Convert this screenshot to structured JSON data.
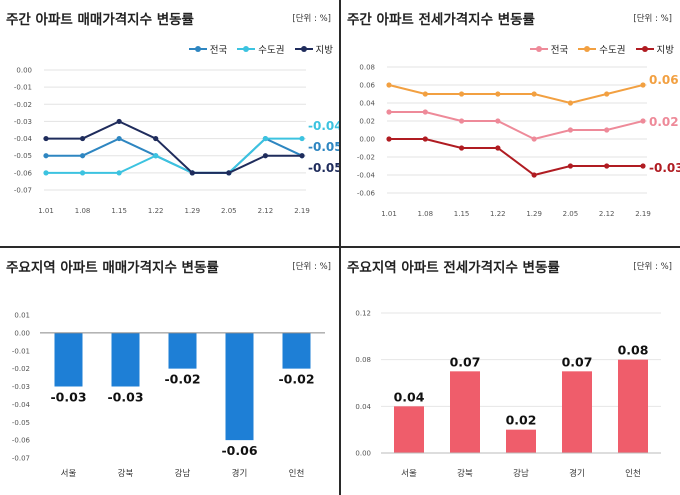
{
  "chart_data": [
    {
      "type": "line",
      "title": "주간 아파트 매매가격지수 변동률",
      "unit": "[단위 : %]",
      "categories": [
        "1.01",
        "1.08",
        "1.15",
        "1.22",
        "1.29",
        "2.05",
        "2.12",
        "2.19"
      ],
      "ylim": [
        -0.07,
        0.0
      ],
      "yticks": [
        "0.00",
        "-0.01",
        "-0.02",
        "-0.03",
        "-0.04",
        "-0.05",
        "-0.06",
        "-0.07"
      ],
      "grid": true,
      "legend": "top-right",
      "series": [
        {
          "name": "전국",
          "color": "#2E86C1",
          "values": [
            -0.05,
            -0.05,
            -0.04,
            -0.05,
            -0.06,
            -0.06,
            -0.04,
            -0.05
          ]
        },
        {
          "name": "수도권",
          "color": "#3CC3E0",
          "values": [
            -0.06,
            -0.06,
            -0.06,
            -0.05,
            -0.06,
            -0.06,
            -0.04,
            -0.04
          ]
        },
        {
          "name": "지방",
          "color": "#1F2C5C",
          "values": [
            -0.04,
            -0.04,
            -0.03,
            -0.04,
            -0.06,
            -0.06,
            -0.05,
            -0.05
          ]
        }
      ],
      "end_labels": [
        {
          "text": "-0.04",
          "color": "#3CC3E0"
        },
        {
          "text": "-0.05",
          "color": "#2E86C1"
        },
        {
          "text": "-0.05",
          "color": "#1F2C5C"
        }
      ]
    },
    {
      "type": "line",
      "title": "주간 아파트 전세가격지수 변동률",
      "unit": "[단위 : %]",
      "categories": [
        "1.01",
        "1.08",
        "1.15",
        "1.22",
        "1.29",
        "2.05",
        "2.12",
        "2.19"
      ],
      "ylim": [
        -0.06,
        0.08
      ],
      "yticks": [
        "0.08",
        "0.06",
        "0.04",
        "0.02",
        "0.00",
        "-0.02",
        "-0.04",
        "-0.06"
      ],
      "grid": true,
      "legend": "top-right",
      "series": [
        {
          "name": "전국",
          "color": "#EE8A99",
          "values": [
            0.03,
            0.03,
            0.02,
            0.02,
            0.0,
            0.01,
            0.01,
            0.02
          ]
        },
        {
          "name": "수도권",
          "color": "#F2A041",
          "values": [
            0.06,
            0.05,
            0.05,
            0.05,
            0.05,
            0.04,
            0.05,
            0.06
          ]
        },
        {
          "name": "지방",
          "color": "#B01C22",
          "values": [
            0.0,
            0.0,
            -0.01,
            -0.01,
            -0.04,
            -0.03,
            -0.03,
            -0.03
          ]
        }
      ],
      "end_labels": [
        {
          "text": "0.06",
          "color": "#F2A041"
        },
        {
          "text": "0.02",
          "color": "#EE8A99"
        },
        {
          "text": "-0.03",
          "color": "#B01C22"
        }
      ]
    },
    {
      "type": "bar",
      "title": "주요지역 아파트 매매가격지수 변동률",
      "unit": "[단위 : %]",
      "categories": [
        "서울",
        "강북",
        "강남",
        "경기",
        "인천"
      ],
      "values": [
        -0.03,
        -0.03,
        -0.02,
        -0.06,
        -0.02
      ],
      "value_labels": [
        "-0.03",
        "-0.03",
        "-0.02",
        "-0.06",
        "-0.02"
      ],
      "ylim": [
        -0.07,
        0.01
      ],
      "yticks": [
        "0.01",
        "0.00",
        "-0.01",
        "-0.02",
        "-0.03",
        "-0.04",
        "-0.05",
        "-0.06",
        "-0.07"
      ],
      "color": "#1E7FD6"
    },
    {
      "type": "bar",
      "title": "주요지역 아파트 전세가격지수 변동률",
      "unit": "[단위 : %]",
      "categories": [
        "서울",
        "강북",
        "강남",
        "경기",
        "인천"
      ],
      "values": [
        0.04,
        0.07,
        0.02,
        0.07,
        0.08
      ],
      "value_labels": [
        "0.04",
        "0.07",
        "0.02",
        "0.07",
        "0.08"
      ],
      "ylim": [
        0.0,
        0.12
      ],
      "yticks": [
        "0.12",
        "0.08",
        "0.04",
        "0.00"
      ],
      "color": "#EF5D6B"
    }
  ]
}
